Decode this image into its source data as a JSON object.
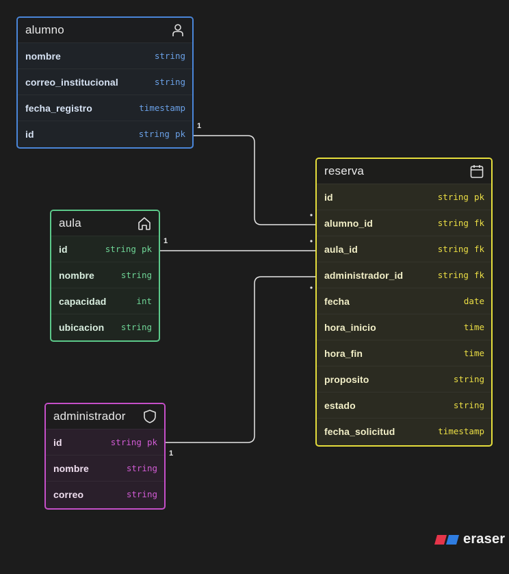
{
  "entities": {
    "alumno": {
      "title": "alumno",
      "icon": "user-icon",
      "color": "#4a86d9",
      "fields": [
        {
          "name": "nombre",
          "type": "string",
          "key": ""
        },
        {
          "name": "correo_institucional",
          "type": "string",
          "key": ""
        },
        {
          "name": "fecha_registro",
          "type": "timestamp",
          "key": ""
        },
        {
          "name": "id",
          "type": "string",
          "key": "pk"
        }
      ]
    },
    "aula": {
      "title": "aula",
      "icon": "home-icon",
      "color": "#5cc98a",
      "fields": [
        {
          "name": "id",
          "type": "string",
          "key": "pk"
        },
        {
          "name": "nombre",
          "type": "string",
          "key": ""
        },
        {
          "name": "capacidad",
          "type": "int",
          "key": ""
        },
        {
          "name": "ubicacion",
          "type": "string",
          "key": ""
        }
      ]
    },
    "administrador": {
      "title": "administrador",
      "icon": "shield-icon",
      "color": "#c64fc9",
      "fields": [
        {
          "name": "id",
          "type": "string",
          "key": "pk"
        },
        {
          "name": "nombre",
          "type": "string",
          "key": ""
        },
        {
          "name": "correo",
          "type": "string",
          "key": ""
        }
      ]
    },
    "reserva": {
      "title": "reserva",
      "icon": "calendar-icon",
      "color": "#e6de3c",
      "fields": [
        {
          "name": "id",
          "type": "string",
          "key": "pk"
        },
        {
          "name": "alumno_id",
          "type": "string",
          "key": "fk"
        },
        {
          "name": "aula_id",
          "type": "string",
          "key": "fk"
        },
        {
          "name": "administrador_id",
          "type": "string",
          "key": "fk"
        },
        {
          "name": "fecha",
          "type": "date",
          "key": ""
        },
        {
          "name": "hora_inicio",
          "type": "time",
          "key": ""
        },
        {
          "name": "hora_fin",
          "type": "time",
          "key": ""
        },
        {
          "name": "proposito",
          "type": "string",
          "key": ""
        },
        {
          "name": "estado",
          "type": "string",
          "key": ""
        },
        {
          "name": "fecha_solicitud",
          "type": "timestamp",
          "key": ""
        }
      ]
    }
  },
  "relations": [
    {
      "from": "alumno.id",
      "to": "reserva.alumno_id",
      "from_cardinality": "1"
    },
    {
      "from": "aula.id",
      "to": "reserva.aula_id",
      "from_cardinality": "1"
    },
    {
      "from": "administrador.id",
      "to": "reserva.administrador_id",
      "from_cardinality": "1"
    }
  ],
  "branding": {
    "logo_text": "eraser",
    "colors": [
      "#e5354a",
      "#2f7de1"
    ]
  }
}
